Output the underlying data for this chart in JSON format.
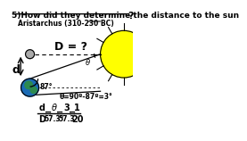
{
  "title_line1": "5)How did they determine the distance to the sun",
  "title_line1_q": "?",
  "subtitle": "Aristarchus (310-230 BC)",
  "D_label": "D = ?",
  "d_label": "d",
  "angle_label": "87°",
  "theta_label": "θ",
  "theta_eq": "θ=90º-87º=3°",
  "bg_color": "#ffffff",
  "sun_color": "#ffff00",
  "earth_color": "#1a6bb5",
  "continent_color": "#2d8a4e",
  "moon_color": "#aaaaaa"
}
